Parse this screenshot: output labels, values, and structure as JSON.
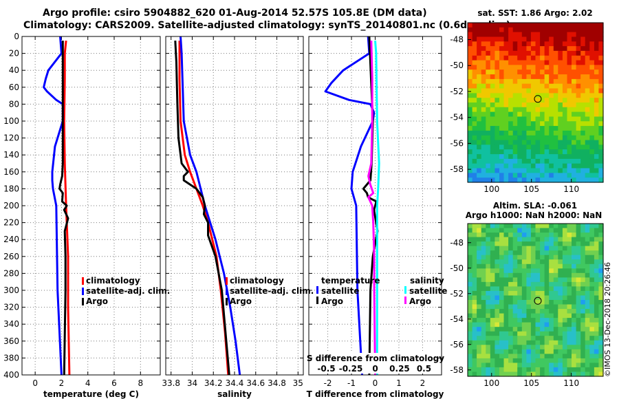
{
  "title": {
    "line1": "Argo profile: csiro 5904882_620 01-Aug-2014 52.57S 105.8E (DM data)",
    "line2": "Climatology: CARS2009. Satellite-adjusted climatology: synTS_20140801.nc (0.6d earlier)"
  },
  "colors": {
    "climatology": "#ff0000",
    "satellite": "#0000ff",
    "argo": "#000000",
    "sal_satellite": "#00ffff",
    "sal_argo": "#ff00ff"
  },
  "chart_data": [
    {
      "type": "line",
      "name": "temperature-panel",
      "xlabel": "temperature (deg C)",
      "ylabel": "",
      "xlim": [
        -1,
        9.5
      ],
      "ylim": [
        400,
        0
      ],
      "xticks": [
        0,
        2,
        4,
        6,
        8
      ],
      "xtick_labels": [
        "0",
        "2",
        "4",
        "6",
        "8"
      ],
      "yticks": [
        0,
        20,
        40,
        60,
        80,
        100,
        120,
        140,
        160,
        180,
        200,
        220,
        240,
        260,
        280,
        300,
        320,
        340,
        360,
        380,
        400
      ],
      "ytick_labels": [
        "0",
        "20",
        "40",
        "60",
        "80",
        "100",
        "120",
        "140",
        "160",
        "180",
        "200",
        "220",
        "240",
        "260",
        "280",
        "300",
        "320",
        "340",
        "360",
        "380",
        "400"
      ],
      "grid": true,
      "legend": "center-right",
      "series": [
        {
          "name": "climatology",
          "color": "#ff0000",
          "depth": [
            5,
            20,
            50,
            100,
            150,
            200,
            260,
            320,
            400
          ],
          "values": [
            2.35,
            2.25,
            2.25,
            2.2,
            2.25,
            2.35,
            2.5,
            2.5,
            2.6
          ]
        },
        {
          "name": "satellite-adj. clim.",
          "color": "#0000ff",
          "depth": [
            0,
            20,
            40,
            50,
            60,
            65,
            75,
            80,
            90,
            100,
            130,
            160,
            170,
            180,
            200,
            300,
            400
          ],
          "values": [
            1.9,
            2.0,
            1.0,
            0.8,
            0.65,
            0.9,
            1.6,
            2.1,
            2.1,
            2.1,
            1.5,
            1.3,
            1.3,
            1.35,
            1.6,
            1.7,
            2.0
          ]
        },
        {
          "name": "Argo",
          "color": "#000000",
          "depth": [
            5,
            20,
            60,
            100,
            150,
            165,
            175,
            180,
            185,
            195,
            200,
            205,
            215,
            230,
            260,
            300,
            400
          ],
          "values": [
            2.1,
            2.1,
            2.1,
            2.1,
            2.1,
            2.05,
            1.9,
            1.85,
            2.1,
            2.05,
            2.4,
            2.2,
            2.5,
            2.25,
            2.3,
            2.3,
            2.2
          ]
        }
      ],
      "legend_entries": [
        "climatology",
        "satellite-adj. clim.",
        "Argo"
      ]
    },
    {
      "type": "line",
      "name": "salinity-panel",
      "xlabel": "salinity",
      "ylabel": "",
      "xlim": [
        33.75,
        35.05
      ],
      "ylim": [
        400,
        0
      ],
      "xticks": [
        33.8,
        34,
        34.2,
        34.4,
        34.6,
        34.8,
        35
      ],
      "xtick_labels": [
        "33.8",
        "34",
        "34.2",
        "34.4",
        "34.6",
        "34.8",
        "35"
      ],
      "grid": true,
      "legend": "center-right",
      "series": [
        {
          "name": "climatology",
          "color": "#ff0000",
          "depth": [
            5,
            50,
            100,
            140,
            160,
            180,
            200,
            220,
            260,
            300,
            350,
            400
          ],
          "values": [
            33.88,
            33.88,
            33.89,
            33.93,
            33.98,
            34.04,
            34.1,
            34.15,
            34.23,
            34.27,
            34.31,
            34.34
          ]
        },
        {
          "name": "satellite-adj. clim.",
          "color": "#0000ff",
          "depth": [
            0,
            20,
            100,
            140,
            160,
            200,
            240,
            280,
            320,
            360,
            400
          ],
          "values": [
            33.89,
            33.9,
            33.92,
            33.98,
            34.04,
            34.12,
            34.22,
            34.3,
            34.36,
            34.41,
            34.45
          ]
        },
        {
          "name": "Argo",
          "color": "#000000",
          "depth": [
            5,
            30,
            80,
            120,
            150,
            160,
            165,
            170,
            180,
            190,
            200,
            210,
            220,
            235,
            260,
            300,
            400
          ],
          "values": [
            33.84,
            33.85,
            33.86,
            33.87,
            33.9,
            33.96,
            33.92,
            33.92,
            34.04,
            34.1,
            34.12,
            34.11,
            34.15,
            34.15,
            34.22,
            34.28,
            34.35
          ]
        }
      ],
      "legend_entries": [
        "climatology",
        "satellite-adj. clim.",
        "Argo"
      ]
    },
    {
      "type": "line",
      "name": "difference-panel",
      "xlabel": "T difference from climatology",
      "top_axis_label": "S difference from climatology",
      "xlim": [
        -2.8,
        2.8
      ],
      "ylim": [
        400,
        0
      ],
      "xticks": [
        -2,
        -1,
        0,
        1,
        2
      ],
      "xtick_labels": [
        "-2",
        "-1",
        "0",
        "1",
        "2"
      ],
      "top_ticks": [
        -0.5,
        -0.25,
        0,
        0.25,
        0.5
      ],
      "top_tick_labels": [
        "-0.5",
        "-0.25",
        "0",
        "0.25",
        "0.5"
      ],
      "grid": true,
      "series": [
        {
          "name": "temperature satellite",
          "color": "#0000ff",
          "depth": [
            0,
            20,
            40,
            55,
            65,
            75,
            80,
            90,
            100,
            130,
            160,
            180,
            200,
            300,
            400
          ],
          "values": [
            -0.3,
            -0.25,
            -1.35,
            -1.85,
            -2.1,
            -1.1,
            -0.2,
            -0.05,
            -0.1,
            -0.6,
            -0.95,
            -1.0,
            -0.8,
            -0.75,
            -0.55
          ]
        },
        {
          "name": "temperature Argo",
          "color": "#000000",
          "depth": [
            0,
            100,
            150,
            170,
            180,
            185,
            190,
            195,
            205,
            230,
            260,
            300,
            400
          ],
          "values": [
            -0.25,
            -0.1,
            -0.15,
            -0.2,
            -0.5,
            -0.35,
            -0.3,
            0.05,
            -0.05,
            0.1,
            -0.1,
            -0.2,
            -0.25
          ]
        },
        {
          "name": "salinity satellite",
          "color": "#00ffff",
          "depth": [
            5,
            20,
            100,
            150,
            180,
            200,
            250,
            300,
            400
          ],
          "values": [
            0.0,
            0.01,
            0.02,
            0.04,
            0.03,
            0.02,
            0.02,
            0.02,
            0.02
          ]
        },
        {
          "name": "salinity Argo",
          "color": "#ff00ff",
          "depth": [
            5,
            50,
            100,
            150,
            165,
            175,
            185,
            190,
            200,
            220,
            260,
            300,
            400
          ],
          "values": [
            -0.04,
            -0.03,
            -0.03,
            -0.04,
            -0.07,
            -0.05,
            -0.02,
            -0.07,
            -0.03,
            -0.02,
            -0.01,
            -0.01,
            0.0
          ]
        }
      ],
      "legend": {
        "temperature_heading": "temperature",
        "salinity_heading": "salinity",
        "satellite": "satellite",
        "argo": "Argo"
      }
    },
    {
      "type": "heatmap",
      "name": "sst-map",
      "title": "sat. SST: 1.86 Argo: 2.02",
      "xlim": [
        97,
        114
      ],
      "ylim": [
        -59,
        -46.7
      ],
      "xticks": [
        100,
        105,
        110
      ],
      "xtick_labels": [
        "100",
        "105",
        "110"
      ],
      "yticks": [
        -48,
        -50,
        -52,
        -54,
        -56,
        -58
      ],
      "ytick_labels": [
        "-48",
        "-50",
        "-52",
        "-54",
        "-56",
        "-58"
      ],
      "marker": {
        "lon": 105.8,
        "lat": -52.57
      }
    },
    {
      "type": "heatmap",
      "name": "sla-map",
      "title": "Altim. SLA: -0.061",
      "subtitle": "Argo h1000: NaN h2000: NaN",
      "xlim": [
        97,
        114
      ],
      "ylim": [
        -58.5,
        -46.5
      ],
      "xticks": [
        100,
        105,
        110
      ],
      "xtick_labels": [
        "100",
        "105",
        "110"
      ],
      "yticks": [
        -48,
        -50,
        -52,
        -54,
        -56,
        -58
      ],
      "ytick_labels": [
        "-48",
        "-50",
        "-52",
        "-54",
        "-56",
        "-58"
      ],
      "marker": {
        "lon": 105.8,
        "lat": -52.57
      }
    }
  ],
  "watermark": "©IMOS 13-Dec-2018 20:26:46"
}
